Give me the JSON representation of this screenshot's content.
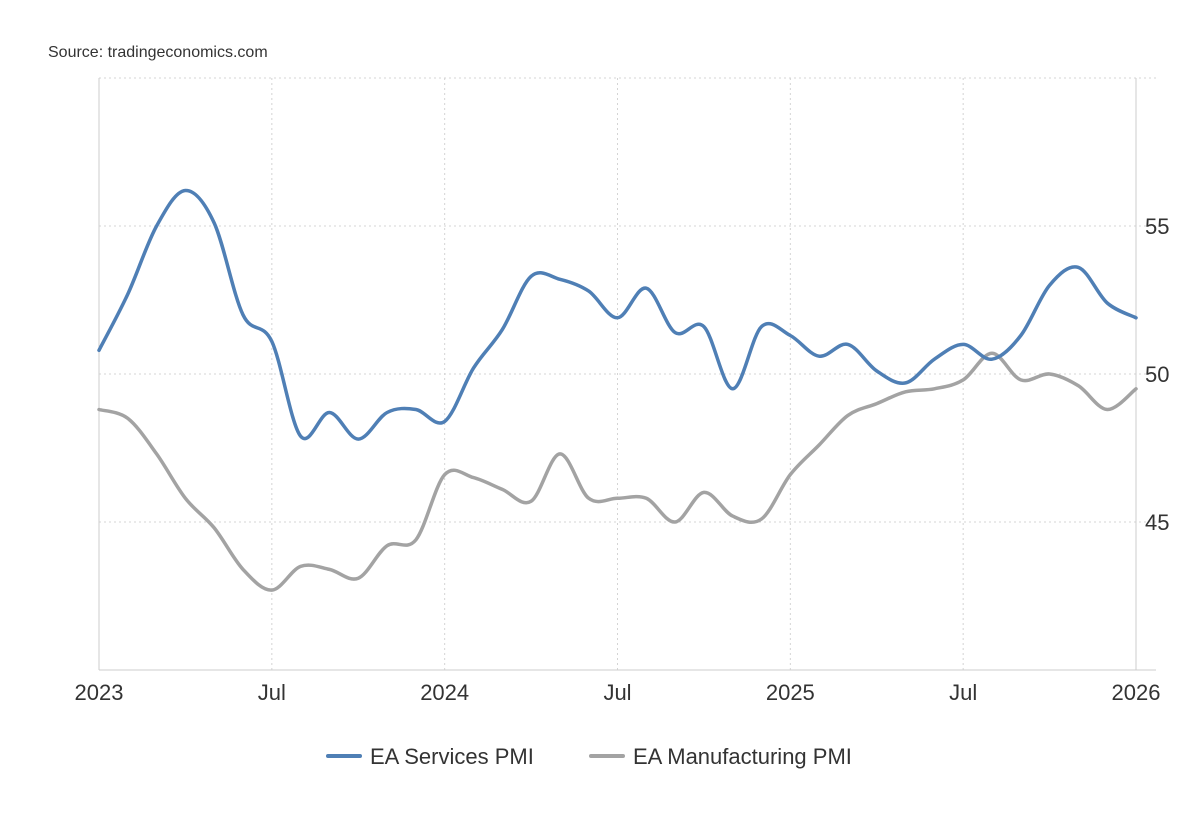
{
  "source": "Source: tradingeconomics.com",
  "chart_data": {
    "type": "line",
    "title": "",
    "xlabel": "",
    "ylabel": "",
    "x_range": [
      "2023-01",
      "2026-01"
    ],
    "ylim": [
      40,
      60
    ],
    "y_ticks": [
      45,
      50,
      55
    ],
    "x_ticks": [
      {
        "date": "2023-01",
        "label": "2023"
      },
      {
        "date": "2023-07",
        "label": "Jul"
      },
      {
        "date": "2024-01",
        "label": "2024"
      },
      {
        "date": "2024-07",
        "label": "Jul"
      },
      {
        "date": "2025-01",
        "label": "2025"
      },
      {
        "date": "2025-07",
        "label": "Jul"
      },
      {
        "date": "2026-01",
        "label": "2026"
      }
    ],
    "grid": true,
    "y_axis_position": "right",
    "legend_position": "bottom-center",
    "x": [
      "2023-01",
      "2023-02",
      "2023-03",
      "2023-04",
      "2023-05",
      "2023-06",
      "2023-07",
      "2023-08",
      "2023-09",
      "2023-10",
      "2023-11",
      "2023-12",
      "2024-01",
      "2024-02",
      "2024-03",
      "2024-04",
      "2024-05",
      "2024-06",
      "2024-07",
      "2024-08",
      "2024-09",
      "2024-10",
      "2024-11",
      "2024-12",
      "2025-01",
      "2025-02",
      "2025-03",
      "2025-04",
      "2025-05",
      "2025-06",
      "2025-07",
      "2025-08",
      "2025-09",
      "2025-10",
      "2025-11",
      "2025-12",
      "2026-01"
    ],
    "series": [
      {
        "name": "EA Services PMI",
        "color": "#4f7fb5",
        "values": [
          50.8,
          52.7,
          55.0,
          56.2,
          55.1,
          52.0,
          51.1,
          47.9,
          48.7,
          47.8,
          48.7,
          48.8,
          48.4,
          50.2,
          51.5,
          53.3,
          53.2,
          52.8,
          51.9,
          52.9,
          51.4,
          51.6,
          49.5,
          51.6,
          51.3,
          50.6,
          51.0,
          50.1,
          49.7,
          50.5,
          51.0,
          50.5,
          51.3,
          53.0,
          53.6,
          52.4,
          51.9
        ]
      },
      {
        "name": "EA Manufacturing PMI",
        "color": "#a3a3a3",
        "values": [
          48.8,
          48.5,
          47.3,
          45.8,
          44.8,
          43.4,
          42.7,
          43.5,
          43.4,
          43.1,
          44.2,
          44.4,
          46.6,
          46.5,
          46.1,
          45.7,
          47.3,
          45.8,
          45.8,
          45.8,
          45.0,
          46.0,
          45.2,
          45.1,
          46.6,
          47.6,
          48.6,
          49.0,
          49.4,
          49.5,
          49.8,
          50.7,
          49.8,
          50.0,
          49.6,
          48.8,
          49.5
        ]
      }
    ]
  }
}
